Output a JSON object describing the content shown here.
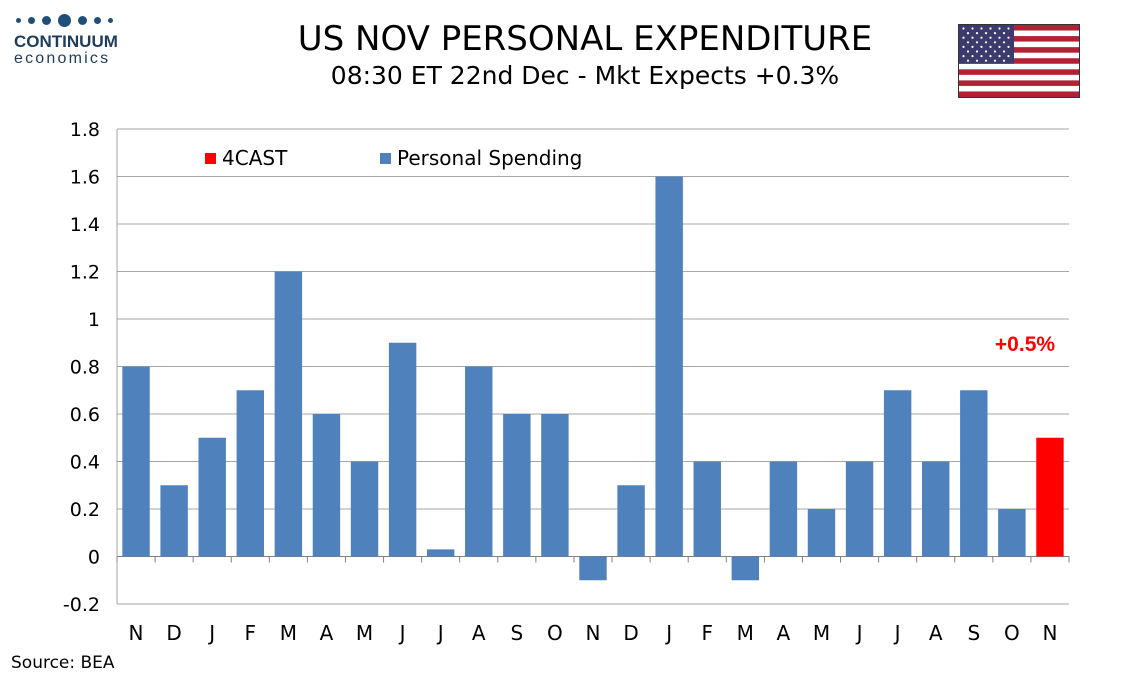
{
  "logo": {
    "name": "CONTINUUM",
    "sub": "economics"
  },
  "header": {
    "title": "US NOV PERSONAL EXPENDITURE",
    "subtitle": "08:30 ET 22nd Dec - Mkt Expects +0.3%"
  },
  "flag": {
    "icon": "us-flag-icon"
  },
  "source": "Source: BEA",
  "colors": {
    "actual": "#4f81bd",
    "forecast": "#ff0000",
    "grid": "#a6a6a6",
    "annotation": "#ff0000"
  },
  "chart_data": {
    "type": "bar",
    "categories": [
      "N",
      "D",
      "J",
      "F",
      "M",
      "A",
      "M",
      "J",
      "J",
      "A",
      "S",
      "O",
      "N",
      "D",
      "J",
      "F",
      "M",
      "A",
      "M",
      "J",
      "J",
      "A",
      "S",
      "O",
      "N"
    ],
    "series": [
      {
        "name": "Personal Spending",
        "values": [
          0.8,
          0.3,
          0.5,
          0.7,
          1.2,
          0.6,
          0.4,
          0.9,
          0.03,
          0.8,
          0.6,
          0.6,
          -0.1,
          0.3,
          1.6,
          0.4,
          -0.1,
          0.4,
          0.2,
          0.4,
          0.7,
          0.4,
          0.7,
          0.2,
          null
        ]
      },
      {
        "name": "4CAST",
        "values": [
          null,
          null,
          null,
          null,
          null,
          null,
          null,
          null,
          null,
          null,
          null,
          null,
          null,
          null,
          null,
          null,
          null,
          null,
          null,
          null,
          null,
          null,
          null,
          null,
          0.5
        ]
      }
    ],
    "yticks": [
      "1.8",
      "1.6",
      "1.4",
      "1.2",
      "1",
      "0.8",
      "0.6",
      "0.4",
      "0.2",
      "0",
      "-0.2"
    ],
    "ylim": [
      -0.2,
      1.8
    ],
    "grid": true,
    "legend": [
      "4CAST",
      "Personal Spending"
    ],
    "legend_position": "top-left",
    "annotation": "+0.5%"
  }
}
